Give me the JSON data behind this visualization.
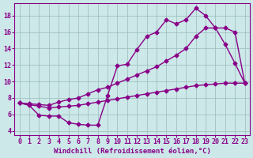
{
  "line1_x": [
    0,
    1,
    2,
    3,
    4,
    5,
    6,
    7,
    8,
    9,
    10,
    11,
    12,
    13,
    14,
    15,
    16,
    17,
    18,
    19,
    20,
    21,
    22,
    23
  ],
  "line1_y": [
    7.4,
    7.1,
    5.9,
    5.8,
    5.8,
    5.0,
    4.8,
    4.7,
    4.7,
    8.3,
    11.9,
    12.1,
    13.9,
    15.5,
    16.0,
    17.5,
    17.0,
    17.5,
    18.9,
    18.0,
    16.5,
    14.5,
    12.2,
    9.8
  ],
  "line2_x": [
    0,
    1,
    2,
    3,
    4,
    5,
    6,
    7,
    8,
    9,
    10,
    11,
    12,
    13,
    14,
    15,
    16,
    17,
    18,
    19,
    20,
    21,
    22,
    23
  ],
  "line2_y": [
    7.4,
    7.3,
    7.2,
    7.1,
    7.5,
    7.8,
    8.0,
    8.5,
    9.0,
    9.3,
    9.8,
    10.3,
    10.8,
    11.3,
    11.8,
    12.5,
    13.2,
    14.0,
    15.5,
    16.5,
    16.5,
    16.5,
    16.0,
    9.8
  ],
  "line3_x": [
    0,
    1,
    2,
    3,
    4,
    5,
    6,
    7,
    8,
    9,
    10,
    11,
    12,
    13,
    14,
    15,
    16,
    17,
    18,
    19,
    20,
    21,
    22,
    23
  ],
  "line3_y": [
    7.4,
    7.2,
    7.0,
    6.8,
    6.9,
    7.0,
    7.1,
    7.3,
    7.5,
    7.7,
    7.9,
    8.1,
    8.3,
    8.5,
    8.7,
    8.9,
    9.1,
    9.3,
    9.5,
    9.6,
    9.7,
    9.8,
    9.8,
    9.8
  ],
  "line_color": "#880088",
  "bg_color": "#cce8e8",
  "grid_color": "#99bbbb",
  "xlim": [
    -0.5,
    23.5
  ],
  "ylim": [
    3.5,
    19.5
  ],
  "xlabel": "Windchill (Refroidissement éolien,°C)",
  "xticks": [
    0,
    1,
    2,
    3,
    4,
    5,
    6,
    7,
    8,
    9,
    10,
    11,
    12,
    13,
    14,
    15,
    16,
    17,
    18,
    19,
    20,
    21,
    22,
    23
  ],
  "yticks": [
    4,
    6,
    8,
    10,
    12,
    14,
    16,
    18
  ],
  "marker": "D",
  "markersize": 2.5,
  "linewidth": 1.0,
  "xlabel_fontsize": 6.5,
  "tick_fontsize": 6.0
}
